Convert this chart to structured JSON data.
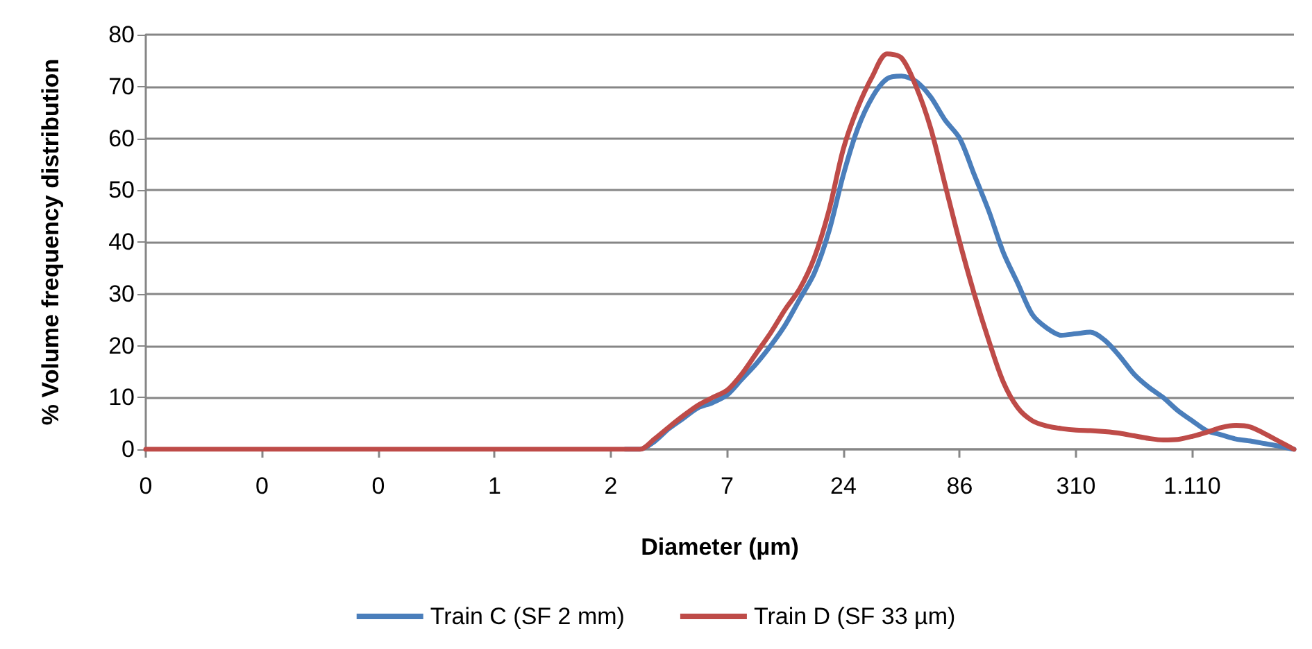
{
  "chart_data": {
    "type": "line",
    "xlabel": "Diameter (µm)",
    "ylabel": "% Volume frequency distribution",
    "categories": [
      "0",
      null,
      null,
      null,
      null,
      null,
      null,
      null,
      "0",
      null,
      null,
      null,
      null,
      null,
      null,
      null,
      "0",
      null,
      null,
      null,
      null,
      null,
      null,
      null,
      "1",
      null,
      null,
      null,
      null,
      null,
      null,
      null,
      "2",
      null,
      null,
      null,
      null,
      null,
      null,
      null,
      "7",
      null,
      null,
      null,
      null,
      null,
      null,
      null,
      "24",
      null,
      null,
      null,
      null,
      null,
      null,
      null,
      "86",
      null,
      null,
      null,
      null,
      null,
      null,
      null,
      "310",
      null,
      null,
      null,
      null,
      null,
      null,
      null,
      "1.110",
      null,
      null,
      null,
      null,
      null,
      null,
      null
    ],
    "series": [
      {
        "name": "Train C (SF 2 mm)",
        "color": "#4a7ebb",
        "values": [
          null,
          null,
          null,
          null,
          null,
          null,
          null,
          null,
          null,
          null,
          null,
          null,
          null,
          null,
          null,
          null,
          null,
          null,
          null,
          null,
          null,
          null,
          null,
          null,
          null,
          null,
          null,
          null,
          null,
          null,
          null,
          null,
          null,
          0,
          0,
          1.5,
          4,
          6,
          8,
          9,
          10.5,
          13.5,
          16.5,
          20,
          24,
          29,
          34,
          42,
          53,
          62,
          68,
          71.5,
          72,
          71,
          68,
          63.5,
          60,
          53,
          46,
          38,
          32,
          26,
          23.4,
          22,
          22.3,
          22.6,
          21,
          18,
          14.5,
          12,
          10,
          7.5,
          5.5,
          3.6,
          2.8,
          2,
          1.6,
          1.1,
          0.6,
          0
        ]
      },
      {
        "name": "Train D (SF 33 µm)",
        "color": "#be4b48",
        "values": [
          0,
          0,
          0,
          0,
          0,
          0,
          0,
          0,
          0,
          0,
          0,
          0,
          0,
          0,
          0,
          0,
          0,
          0,
          0,
          0,
          0,
          0,
          0,
          0,
          0,
          0,
          0,
          0,
          0,
          0,
          0,
          0,
          0,
          0,
          0,
          2,
          4.3,
          6.5,
          8.5,
          10,
          11.4,
          14.5,
          18.5,
          22.5,
          27,
          31,
          37,
          46,
          58,
          66,
          72,
          76.3,
          75.5,
          70,
          62,
          51,
          40,
          30,
          21,
          13,
          8,
          5.5,
          4.5,
          4,
          3.7,
          3.6,
          3.4,
          3.1,
          2.6,
          2.1,
          1.8,
          1.9,
          2.5,
          3.3,
          4.2,
          4.6,
          4.3,
          3,
          1.5,
          0
        ]
      }
    ],
    "ylim": [
      0,
      80
    ],
    "yticks": [
      0,
      10,
      20,
      30,
      40,
      50,
      60,
      70,
      80
    ],
    "grid": "y",
    "legend": "bottom",
    "marker": "none",
    "line_style": "solid"
  }
}
